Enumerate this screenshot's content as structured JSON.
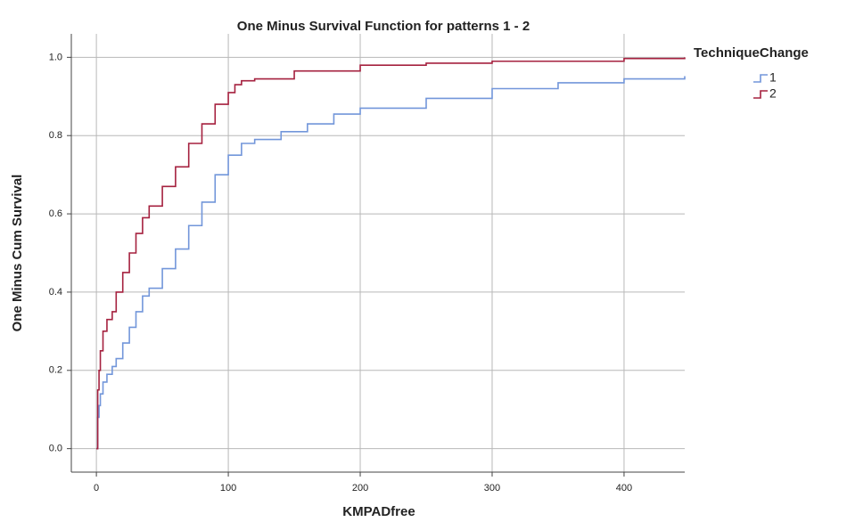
{
  "chart_data": {
    "type": "line",
    "step": true,
    "title": "One Minus Survival Function for patterns 1 - 2",
    "x_label": "KMPADfree",
    "y_label": "One Minus Cum Survival",
    "legend_title": "TechniqueChange",
    "legend": "outside-right",
    "xlim": [
      -19,
      446
    ],
    "ylim": [
      -0.06,
      1.06
    ],
    "xticks": [
      0,
      100,
      200,
      300,
      400
    ],
    "yticks": [
      {
        "value": 0,
        "label": "0.0"
      },
      0.2,
      0.4,
      0.6,
      0.8,
      {
        "value": 1,
        "label": "1.0"
      }
    ],
    "grid": true,
    "series": [
      {
        "name": "1",
        "color": "#7296da",
        "x": [
          0,
          1,
          2,
          3,
          5,
          8,
          12,
          15,
          20,
          25,
          30,
          35,
          40,
          50,
          60,
          70,
          80,
          90,
          100,
          110,
          120,
          140,
          160,
          180,
          200,
          250,
          300,
          350,
          400,
          446
        ],
        "values": [
          0,
          0.08,
          0.11,
          0.14,
          0.17,
          0.19,
          0.21,
          0.23,
          0.27,
          0.31,
          0.35,
          0.39,
          0.41,
          0.46,
          0.51,
          0.57,
          0.63,
          0.7,
          0.75,
          0.78,
          0.79,
          0.81,
          0.83,
          0.855,
          0.87,
          0.895,
          0.92,
          0.935,
          0.945,
          0.952
        ]
      },
      {
        "name": "2",
        "color": "#a5213f",
        "x": [
          0,
          1,
          2,
          3,
          5,
          8,
          12,
          15,
          20,
          25,
          30,
          35,
          40,
          50,
          60,
          70,
          80,
          90,
          100,
          105,
          110,
          120,
          150,
          200,
          250,
          300,
          400,
          446
        ],
        "values": [
          0,
          0.15,
          0.2,
          0.25,
          0.3,
          0.33,
          0.35,
          0.4,
          0.45,
          0.5,
          0.55,
          0.59,
          0.62,
          0.67,
          0.72,
          0.78,
          0.83,
          0.88,
          0.91,
          0.93,
          0.94,
          0.945,
          0.965,
          0.98,
          0.985,
          0.99,
          0.997,
          1.0
        ]
      }
    ]
  }
}
